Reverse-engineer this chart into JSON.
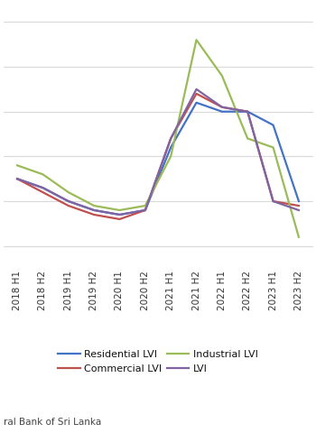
{
  "x_labels": [
    "2018 H1",
    "2018 H2",
    "2019 H1",
    "2019 H2",
    "2020 H1",
    "2020 H2",
    "2021 H1",
    "2021 H2",
    "2022 H1",
    "2022 H2",
    "2023 H1",
    "2023 H2"
  ],
  "series": {
    "Residential LVI": {
      "color": "#4472C4",
      "values": [
        15,
        13,
        10,
        8,
        7,
        8,
        22,
        32,
        30,
        30,
        27,
        10
      ]
    },
    "Commercial LVI": {
      "color": "#C0504D",
      "values": [
        15,
        12,
        9,
        7,
        6,
        8,
        24,
        34,
        31,
        30,
        10,
        9
      ]
    },
    "Industrial LVI": {
      "color": "#9BBB59",
      "values": [
        18,
        16,
        12,
        9,
        8,
        9,
        20,
        46,
        38,
        24,
        22,
        2
      ]
    },
    "LVI": {
      "color": "#8064A2",
      "values": [
        15,
        13,
        10,
        8,
        7,
        8,
        24,
        35,
        31,
        30,
        10,
        8
      ]
    }
  },
  "source_text": "ral Bank of Sri Lanka",
  "background_color": "#FFFFFF",
  "grid_color": "#D9D9D9",
  "ylim": [
    -5,
    52
  ],
  "line_width": 1.6,
  "label_fontsize": 7.5,
  "legend_fontsize": 8.0,
  "source_fontsize": 7.5,
  "legend_order": [
    "Residential LVI",
    "Commercial LVI",
    "Industrial LVI",
    "LVI"
  ],
  "legend_ncol": 2
}
